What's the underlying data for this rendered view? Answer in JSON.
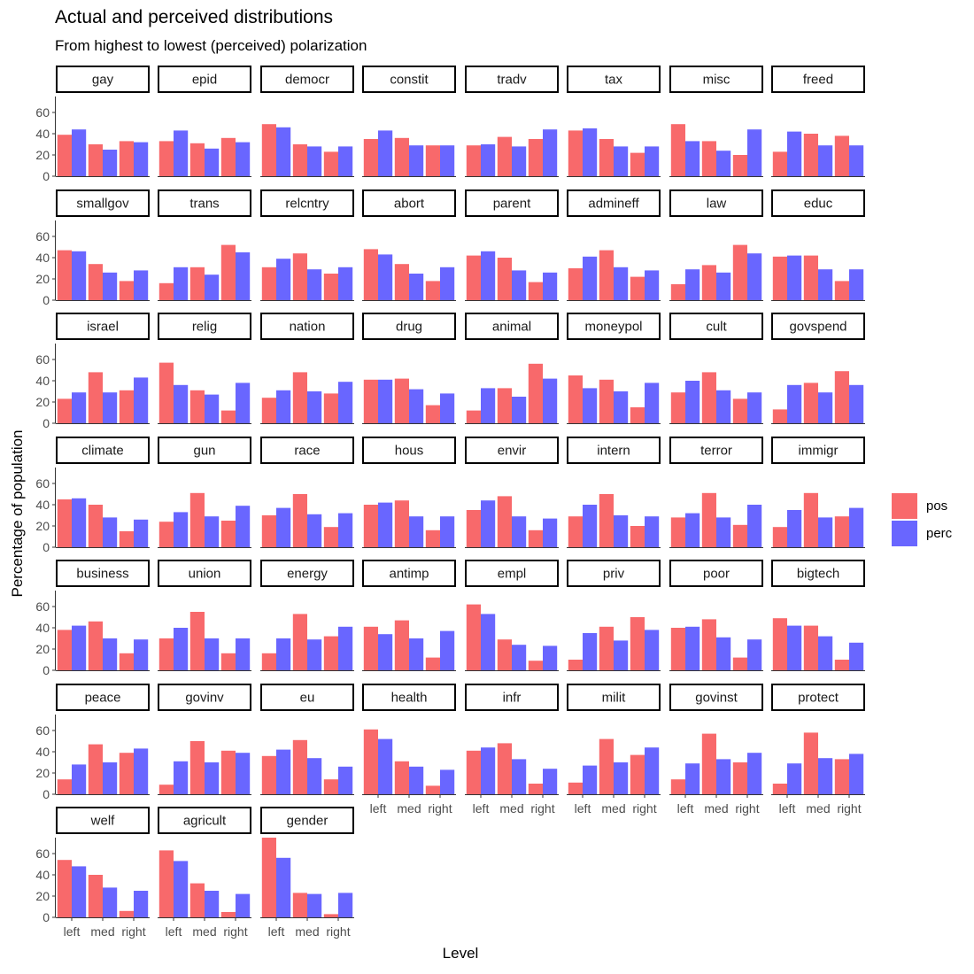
{
  "chart_data": {
    "type": "bar",
    "title": "Actual and perceived distributions",
    "subtitle": "From highest to lowest (perceived) polarization",
    "xlabel": "Level",
    "ylabel": "Percentage of population",
    "categories": [
      "left",
      "med",
      "right"
    ],
    "y_ticks": [
      "0",
      "20",
      "40",
      "60"
    ],
    "ylim": [
      0,
      75
    ],
    "legend_placement": "right",
    "series": [
      {
        "name": "pos",
        "color": "#F8696B"
      },
      {
        "name": "perc",
        "color": "#6966FF"
      }
    ],
    "panels": [
      {
        "label": "gay",
        "pos": [
          39,
          30,
          33
        ],
        "perc": [
          44,
          25,
          32
        ]
      },
      {
        "label": "epid",
        "pos": [
          33,
          31,
          36
        ],
        "perc": [
          43,
          26,
          32
        ]
      },
      {
        "label": "democr",
        "pos": [
          49,
          30,
          23
        ],
        "perc": [
          46,
          28,
          28
        ]
      },
      {
        "label": "constit",
        "pos": [
          35,
          36,
          29
        ],
        "perc": [
          43,
          29,
          29
        ]
      },
      {
        "label": "tradv",
        "pos": [
          29,
          37,
          35
        ],
        "perc": [
          30,
          28,
          44
        ]
      },
      {
        "label": "tax",
        "pos": [
          43,
          35,
          22
        ],
        "perc": [
          45,
          28,
          28
        ]
      },
      {
        "label": "misc",
        "pos": [
          49,
          33,
          20
        ],
        "perc": [
          33,
          24,
          44
        ]
      },
      {
        "label": "freed",
        "pos": [
          23,
          40,
          38
        ],
        "perc": [
          42,
          29,
          29
        ]
      },
      {
        "label": "smallgov",
        "pos": [
          47,
          34,
          18
        ],
        "perc": [
          46,
          26,
          28
        ]
      },
      {
        "label": "trans",
        "pos": [
          16,
          31,
          52
        ],
        "perc": [
          31,
          24,
          45
        ]
      },
      {
        "label": "relcntry",
        "pos": [
          31,
          44,
          25
        ],
        "perc": [
          39,
          29,
          31
        ]
      },
      {
        "label": "abort",
        "pos": [
          48,
          34,
          18
        ],
        "perc": [
          43,
          25,
          31
        ]
      },
      {
        "label": "parent",
        "pos": [
          42,
          40,
          17
        ],
        "perc": [
          46,
          28,
          26
        ]
      },
      {
        "label": "admineff",
        "pos": [
          30,
          47,
          22
        ],
        "perc": [
          41,
          31,
          28
        ]
      },
      {
        "label": "law",
        "pos": [
          15,
          33,
          52
        ],
        "perc": [
          29,
          26,
          44
        ]
      },
      {
        "label": "educ",
        "pos": [
          41,
          42,
          18
        ],
        "perc": [
          42,
          29,
          29
        ]
      },
      {
        "label": "israel",
        "pos": [
          23,
          48,
          31
        ],
        "perc": [
          29,
          29,
          43
        ]
      },
      {
        "label": "relig",
        "pos": [
          57,
          31,
          12
        ],
        "perc": [
          36,
          27,
          38
        ]
      },
      {
        "label": "nation",
        "pos": [
          24,
          48,
          28
        ],
        "perc": [
          31,
          30,
          39
        ]
      },
      {
        "label": "drug",
        "pos": [
          41,
          42,
          17
        ],
        "perc": [
          41,
          32,
          28
        ]
      },
      {
        "label": "animal",
        "pos": [
          12,
          33,
          56
        ],
        "perc": [
          33,
          25,
          42
        ]
      },
      {
        "label": "moneypol",
        "pos": [
          45,
          41,
          15
        ],
        "perc": [
          33,
          30,
          38
        ]
      },
      {
        "label": "cult",
        "pos": [
          29,
          48,
          23
        ],
        "perc": [
          40,
          31,
          29
        ]
      },
      {
        "label": "govspend",
        "pos": [
          13,
          38,
          49
        ],
        "perc": [
          36,
          29,
          36
        ]
      },
      {
        "label": "climate",
        "pos": [
          45,
          40,
          15
        ],
        "perc": [
          46,
          28,
          26
        ]
      },
      {
        "label": "gun",
        "pos": [
          24,
          51,
          25
        ],
        "perc": [
          33,
          29,
          39
        ]
      },
      {
        "label": "race",
        "pos": [
          30,
          50,
          19
        ],
        "perc": [
          37,
          31,
          32
        ]
      },
      {
        "label": "hous",
        "pos": [
          40,
          44,
          16
        ],
        "perc": [
          42,
          29,
          29
        ]
      },
      {
        "label": "envir",
        "pos": [
          35,
          48,
          16
        ],
        "perc": [
          44,
          29,
          27
        ]
      },
      {
        "label": "intern",
        "pos": [
          29,
          50,
          20
        ],
        "perc": [
          40,
          30,
          29
        ]
      },
      {
        "label": "terror",
        "pos": [
          28,
          51,
          21
        ],
        "perc": [
          32,
          28,
          40
        ]
      },
      {
        "label": "immigr",
        "pos": [
          19,
          51,
          29
        ],
        "perc": [
          35,
          28,
          37
        ]
      },
      {
        "label": "business",
        "pos": [
          38,
          46,
          16
        ],
        "perc": [
          42,
          30,
          29
        ]
      },
      {
        "label": "union",
        "pos": [
          30,
          55,
          16
        ],
        "perc": [
          40,
          30,
          30
        ]
      },
      {
        "label": "energy",
        "pos": [
          16,
          53,
          32
        ],
        "perc": [
          30,
          29,
          41
        ]
      },
      {
        "label": "antimp",
        "pos": [
          41,
          47,
          12
        ],
        "perc": [
          34,
          30,
          37
        ]
      },
      {
        "label": "empl",
        "pos": [
          62,
          29,
          9
        ],
        "perc": [
          53,
          24,
          23
        ]
      },
      {
        "label": "priv",
        "pos": [
          10,
          41,
          50
        ],
        "perc": [
          35,
          28,
          38
        ]
      },
      {
        "label": "poor",
        "pos": [
          40,
          48,
          12
        ],
        "perc": [
          41,
          31,
          29
        ]
      },
      {
        "label": "bigtech",
        "pos": [
          49,
          42,
          10
        ],
        "perc": [
          42,
          32,
          26
        ]
      },
      {
        "label": "peace",
        "pos": [
          14,
          47,
          39
        ],
        "perc": [
          28,
          30,
          43
        ]
      },
      {
        "label": "govinv",
        "pos": [
          9,
          50,
          41
        ],
        "perc": [
          31,
          30,
          39
        ]
      },
      {
        "label": "eu",
        "pos": [
          36,
          51,
          14
        ],
        "perc": [
          42,
          34,
          26
        ]
      },
      {
        "label": "health",
        "pos": [
          61,
          31,
          8
        ],
        "perc": [
          52,
          26,
          23
        ]
      },
      {
        "label": "infr",
        "pos": [
          41,
          48,
          10
        ],
        "perc": [
          44,
          33,
          24
        ]
      },
      {
        "label": "milit",
        "pos": [
          11,
          52,
          37
        ],
        "perc": [
          27,
          30,
          44
        ]
      },
      {
        "label": "govinst",
        "pos": [
          14,
          57,
          30
        ],
        "perc": [
          29,
          33,
          39
        ]
      },
      {
        "label": "protect",
        "pos": [
          10,
          58,
          33
        ],
        "perc": [
          29,
          34,
          38
        ]
      },
      {
        "label": "welf",
        "pos": [
          54,
          40,
          6
        ],
        "perc": [
          48,
          28,
          25
        ]
      },
      {
        "label": "agricult",
        "pos": [
          63,
          32,
          5
        ],
        "perc": [
          53,
          25,
          22
        ]
      },
      {
        "label": "gender",
        "pos": [
          75,
          23,
          3
        ],
        "perc": [
          56,
          22,
          23
        ]
      }
    ]
  }
}
